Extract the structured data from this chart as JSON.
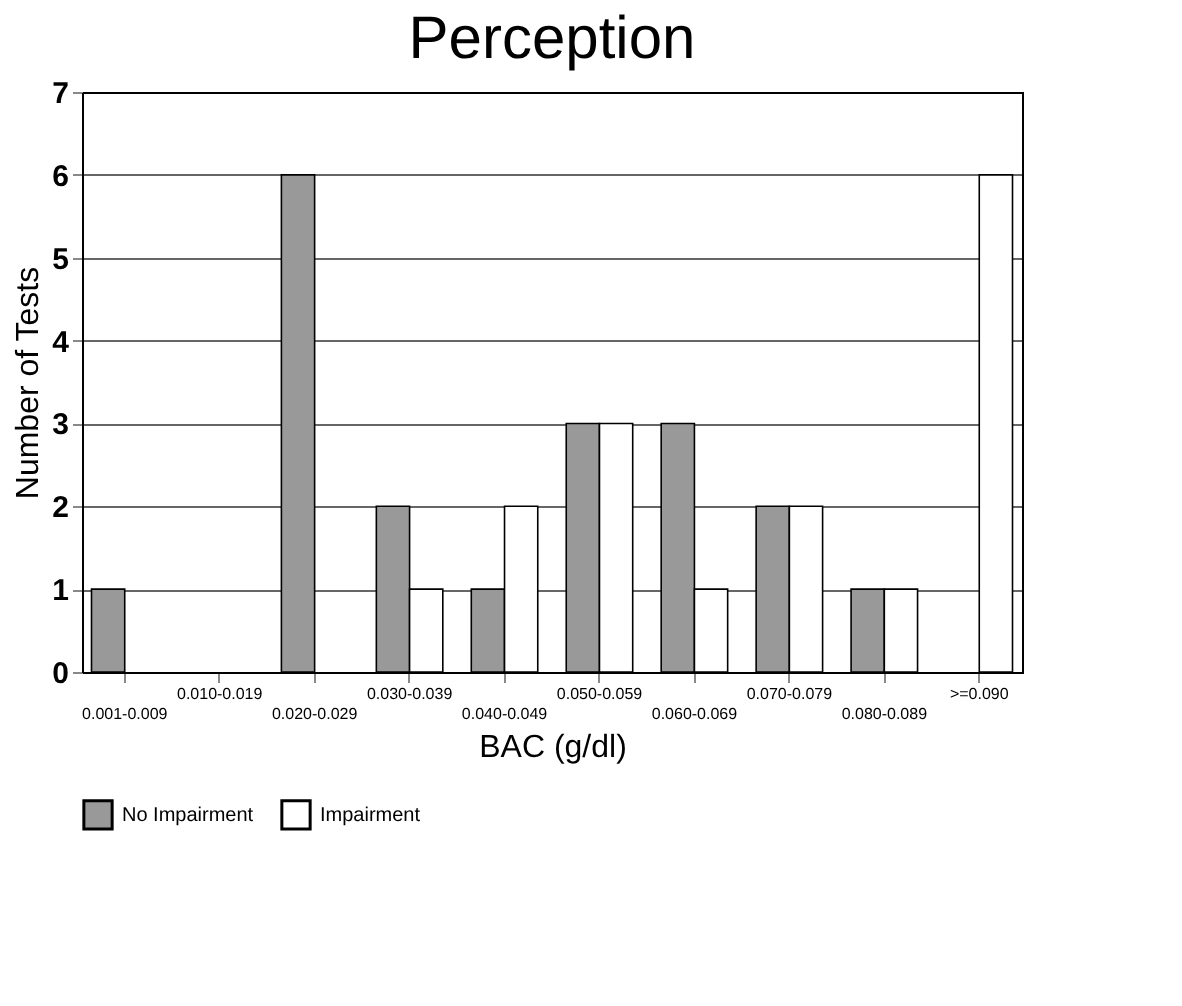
{
  "chart_data": {
    "type": "bar",
    "title": "Perception",
    "xlabel": "BAC (g/dl)",
    "ylabel": "Number of Tests",
    "categories": [
      "0.001-0.009",
      "0.010-0.019",
      "0.020-0.029",
      "0.030-0.039",
      "0.040-0.049",
      "0.050-0.059",
      "0.060-0.069",
      "0.070-0.079",
      "0.080-0.089",
      ">=0.090"
    ],
    "series": [
      {
        "name": "No Impairment",
        "color": "#999999",
        "values": [
          1,
          0,
          6,
          2,
          1,
          3,
          3,
          2,
          1,
          0
        ]
      },
      {
        "name": "Impairment",
        "color": "#ffffff",
        "values": [
          0,
          0,
          0,
          1,
          2,
          3,
          1,
          2,
          1,
          6
        ]
      }
    ],
    "ylim": [
      0,
      7
    ],
    "yticks": [
      0,
      1,
      2,
      3,
      4,
      5,
      6,
      7
    ],
    "grid": "y",
    "legend": "bottom"
  }
}
